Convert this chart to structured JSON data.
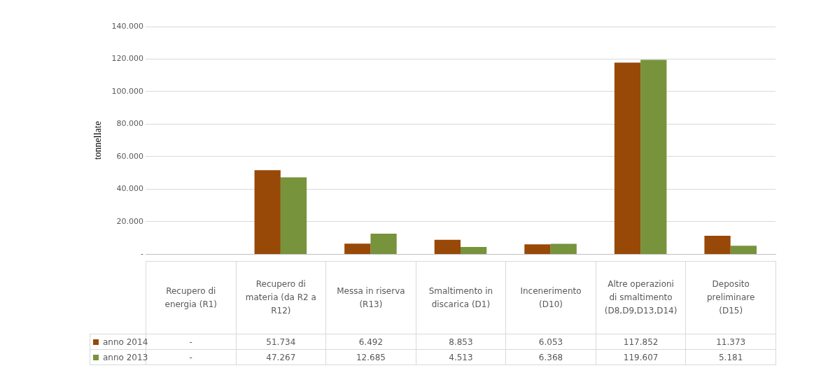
{
  "chart_data": {
    "type": "bar",
    "ylabel": "tonnellate",
    "categories": [
      "Recupero di energia (R1)",
      "Recupero di materia (da R2 a R12)",
      "Messa in riserva (R13)",
      "Smaltimento in discarica (D1)",
      "Incenerimento (D10)",
      "Altre operazioni di smaltimento (D8,D9,D13,D14)",
      "Deposito preliminare (D15)"
    ],
    "series": [
      {
        "name": "anno 2014",
        "color": "#984807",
        "values": [
          null,
          51734,
          6492,
          8853,
          6053,
          117852,
          11373
        ],
        "value_labels": [
          "-",
          "51.734",
          "6.492",
          "8.853",
          "6.053",
          "117.852",
          "11.373"
        ]
      },
      {
        "name": "anno 2013",
        "color": "#77933c",
        "values": [
          null,
          47267,
          12685,
          4513,
          6368,
          119607,
          5181
        ],
        "value_labels": [
          "-",
          "47.267",
          "12.685",
          "4.513",
          "6.368",
          "119.607",
          "5.181"
        ]
      }
    ],
    "ylim": [
      0,
      140000
    ],
    "yticks": [
      {
        "value": 0,
        "label": "-"
      },
      {
        "value": 20000,
        "label": "20.000"
      },
      {
        "value": 40000,
        "label": "40.000"
      },
      {
        "value": 60000,
        "label": "60.000"
      },
      {
        "value": 80000,
        "label": "80.000"
      },
      {
        "value": 100000,
        "label": "100.000"
      },
      {
        "value": 120000,
        "label": "120.000"
      },
      {
        "value": 140000,
        "label": "140.000"
      }
    ],
    "grid": "y",
    "legend": "bottom left"
  }
}
